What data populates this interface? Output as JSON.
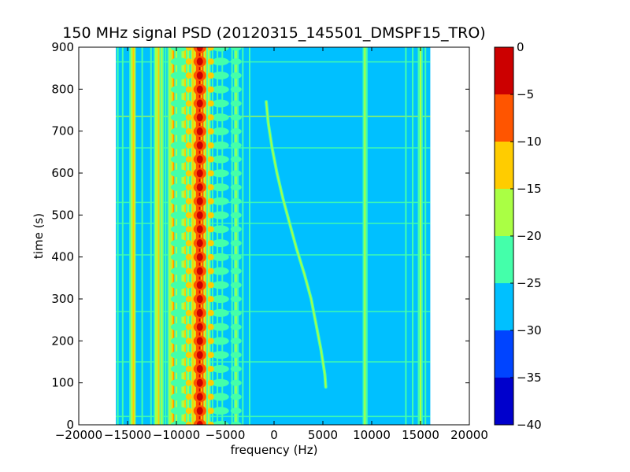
{
  "chart_data": {
    "type": "heatmap",
    "title": "150 MHz signal PSD (20120315_145501_DMSPF15_TRO)",
    "xlabel": "frequency (Hz)",
    "ylabel": "time (s)",
    "xlim": [
      -20000,
      20000
    ],
    "ylim": [
      0,
      900
    ],
    "x_ticks": [
      -20000,
      -15000,
      -10000,
      -5000,
      0,
      5000,
      10000,
      15000,
      20000
    ],
    "x_tick_labels": [
      "−20000",
      "−15000",
      "−10000",
      "−5000",
      "0",
      "5000",
      "10000",
      "15000",
      "20000"
    ],
    "y_ticks": [
      0,
      100,
      200,
      300,
      400,
      500,
      600,
      700,
      800,
      900
    ],
    "y_tick_labels": [
      "0",
      "100",
      "200",
      "300",
      "400",
      "500",
      "600",
      "700",
      "800",
      "900"
    ],
    "data_extent_x": [
      -16200,
      16000
    ],
    "background_level": -27.5,
    "colorbar": {
      "levels": [
        -40,
        -35,
        -30,
        -25,
        -20,
        -15,
        -10,
        -5,
        0
      ],
      "tick_labels": [
        "−40",
        "−35",
        "−30",
        "−25",
        "−20",
        "−15",
        "−10",
        "−5",
        "0"
      ],
      "colors": [
        "#0000cc",
        "#0044ff",
        "#00c0ff",
        "#44ffaa",
        "#aaff44",
        "#ffcc00",
        "#ff5500",
        "#cc0000"
      ]
    },
    "vertical_lines": [
      {
        "x": -16000,
        "level": -22
      },
      {
        "x": -15500,
        "level": -22
      },
      {
        "x": -14600,
        "level": -17
      },
      {
        "x": -14400,
        "level": -12
      },
      {
        "x": -13500,
        "level": -22
      },
      {
        "x": -12600,
        "level": -22
      },
      {
        "x": -12100,
        "level": -17
      },
      {
        "x": -11800,
        "level": -12
      },
      {
        "x": -11500,
        "level": -17
      },
      {
        "x": -11100,
        "level": -22
      },
      {
        "x": -10700,
        "level": -17
      },
      {
        "x": -10400,
        "level": -12
      },
      {
        "x": -10200,
        "level": -7
      },
      {
        "x": -10000,
        "level": -17
      },
      {
        "x": -9700,
        "level": -22
      },
      {
        "x": -9400,
        "level": -17
      },
      {
        "x": -9100,
        "level": -12
      },
      {
        "x": -8800,
        "level": -17
      },
      {
        "x": -8300,
        "level": -12
      },
      {
        "x": -7900,
        "level": -7
      },
      {
        "x": -7600,
        "level": -2
      },
      {
        "x": -7300,
        "level": -7
      },
      {
        "x": -7000,
        "level": -12
      },
      {
        "x": -6700,
        "level": -17
      },
      {
        "x": -6300,
        "level": -22
      },
      {
        "x": -5800,
        "level": -22
      },
      {
        "x": -5300,
        "level": -22
      },
      {
        "x": -4300,
        "level": -22
      },
      {
        "x": -3900,
        "level": -17
      },
      {
        "x": -3700,
        "level": -22
      },
      {
        "x": -3200,
        "level": -22
      },
      {
        "x": -2500,
        "level": -22
      },
      {
        "x": 9300,
        "level": -17
      },
      {
        "x": 9500,
        "level": -22
      },
      {
        "x": 13500,
        "level": -22
      },
      {
        "x": 14200,
        "level": -22
      },
      {
        "x": 14800,
        "level": -22
      },
      {
        "x": 15000,
        "level": -17
      },
      {
        "x": 15500,
        "level": -22
      }
    ],
    "swept_signal": {
      "level": -17,
      "points": [
        [
          -800,
          770
        ],
        [
          -600,
          720
        ],
        [
          -200,
          660
        ],
        [
          300,
          600
        ],
        [
          900,
          540
        ],
        [
          1600,
          480
        ],
        [
          2300,
          420
        ],
        [
          3100,
          360
        ],
        [
          3800,
          300
        ],
        [
          4300,
          240
        ],
        [
          4800,
          180
        ],
        [
          5200,
          120
        ],
        [
          5300,
          90
        ]
      ]
    },
    "horizontal_bands": [
      {
        "y": 20,
        "level": -22
      },
      {
        "y": 150,
        "level": -22
      },
      {
        "y": 270,
        "level": -22
      },
      {
        "y": 405,
        "level": -22
      },
      {
        "y": 480,
        "level": -22
      },
      {
        "y": 530,
        "level": -22
      },
      {
        "y": 660,
        "level": -22
      },
      {
        "y": 735,
        "level": -17
      },
      {
        "y": 865,
        "level": -22
      }
    ],
    "modulation_period_s": 33.3
  }
}
